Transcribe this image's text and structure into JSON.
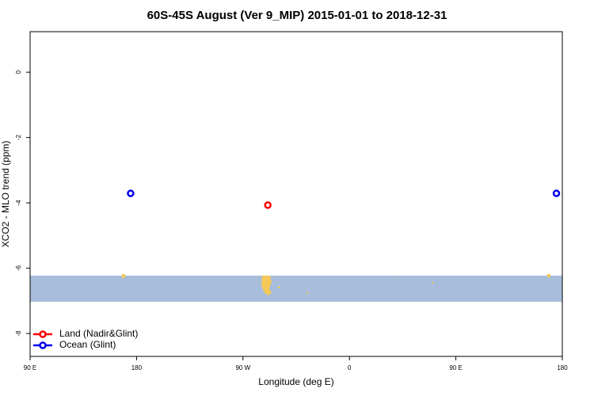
{
  "chart_data": {
    "type": "scatter",
    "title": "60S-45S August (Ver 9_MIP)   2015-01-01 to 2018-12-31",
    "x_label": "Longitude (deg E)",
    "y_label": "XCO2 - MLO trend (ppm)",
    "xlim": [
      90,
      540
    ],
    "xticks": [
      {
        "value": 90,
        "label": "90 E"
      },
      {
        "value": 180,
        "label": "180"
      },
      {
        "value": 270,
        "label": "90 W"
      },
      {
        "value": 360,
        "label": "0"
      },
      {
        "value": 450,
        "label": "90 E"
      },
      {
        "value": 540,
        "label": "180"
      }
    ],
    "ylim": [
      -8.7,
      1.24
    ],
    "yticks": [
      0,
      -2,
      -4,
      -6,
      -8
    ],
    "legend": "bottom-left",
    "series": [
      {
        "name": "Land (Nadir&Glint)",
        "color": "#ff0000",
        "x": [
          291
        ],
        "values": [
          -4.07
        ]
      },
      {
        "name": "Ocean (Glint)",
        "color": "#0000ee",
        "x": [
          175,
          535
        ],
        "values": [
          -3.71,
          -3.71
        ]
      }
    ]
  }
}
